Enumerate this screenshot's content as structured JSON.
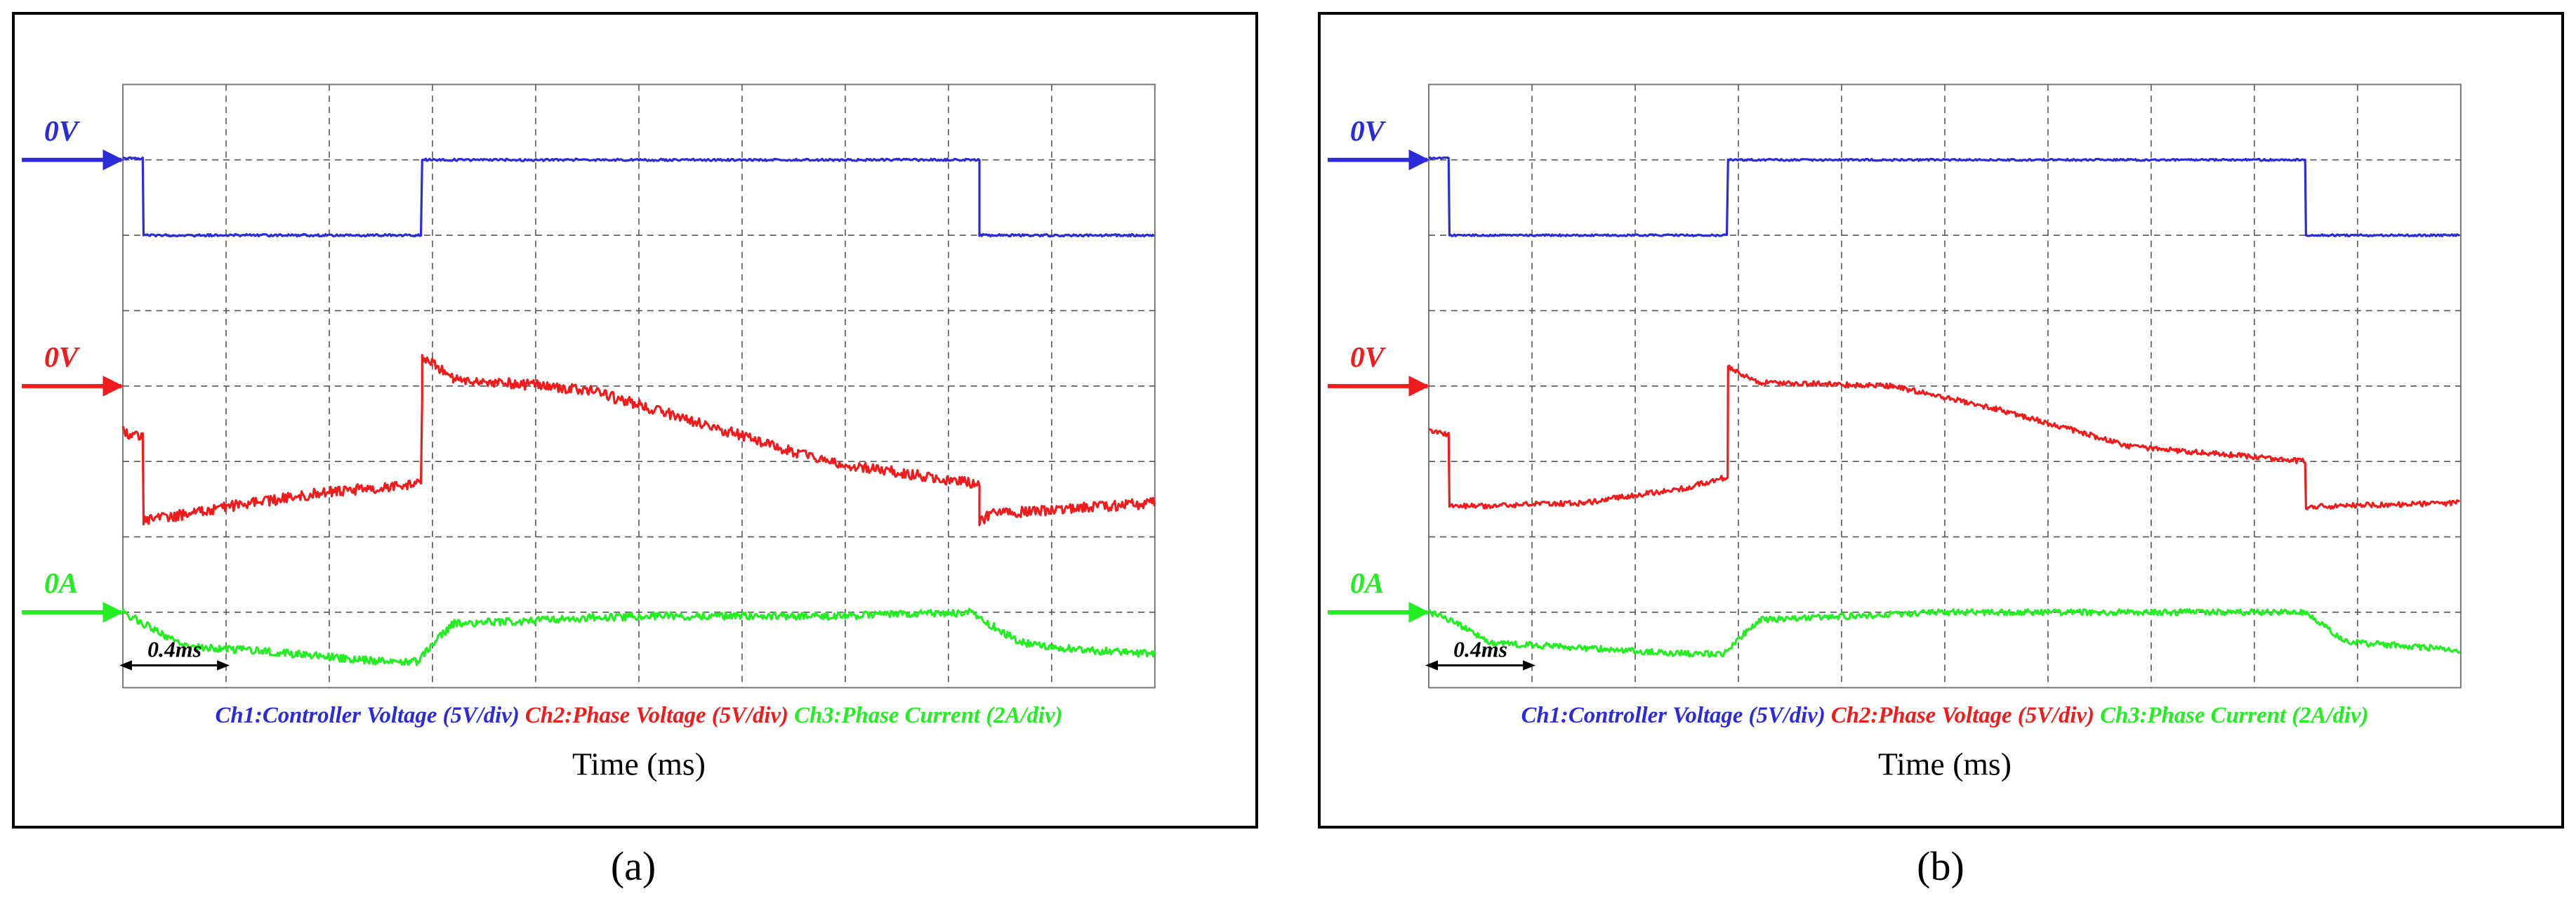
{
  "colors": {
    "ch1": "#2b2bd9",
    "ch2": "#ee1c1c",
    "ch3": "#22ee22",
    "grid": "#555555"
  },
  "chart_data": [
    {
      "type": "line",
      "panel": "(a)",
      "xlabel": "Time (ms)",
      "scale_label": "0.4ms",
      "x_unit_per_div": 0.4,
      "divisions": {
        "x": 10,
        "y": 8
      },
      "grid": true,
      "legend": [
        {
          "text": "Ch1:Controller Voltage (5V/div)",
          "color": "#2b2bd9"
        },
        {
          "text": "Ch2:Phase Voltage (5V/div)",
          "color": "#ee1c1c"
        },
        {
          "text": "Ch3:Phase Current (2A/div)",
          "color": "#22ee22"
        }
      ],
      "series": [
        {
          "name": "Ch1:Controller Voltage (5V/div)",
          "color": "#2b2bd9",
          "marker": "0V",
          "ref_div": 1.0,
          "noise": 0.015,
          "points": [
            [
              0,
              0.98
            ],
            [
              0.2,
              0.98
            ],
            [
              0.2,
              2.0
            ],
            [
              2.9,
              2.0
            ],
            [
              2.9,
              1.0
            ],
            [
              8.3,
              1.0
            ],
            [
              8.3,
              2.0
            ],
            [
              10,
              2.0
            ]
          ]
        },
        {
          "name": "Ch2:Phase Voltage (5V/div)",
          "color": "#ee1c1c",
          "marker": "0V",
          "ref_div": 4.0,
          "noise": 0.07,
          "points": [
            [
              0,
              4.6
            ],
            [
              0.2,
              4.7
            ],
            [
              0.2,
              5.8
            ],
            [
              1,
              5.6
            ],
            [
              2,
              5.4
            ],
            [
              2.9,
              5.3
            ],
            [
              2.9,
              4.15
            ],
            [
              2.9,
              3.6
            ],
            [
              3.2,
              3.9
            ],
            [
              4.5,
              4.05
            ],
            [
              5.5,
              4.45
            ],
            [
              6.8,
              5.0
            ],
            [
              8.3,
              5.3
            ],
            [
              8.3,
              5.8
            ],
            [
              8.4,
              5.7
            ],
            [
              10,
              5.55
            ]
          ]
        },
        {
          "name": "Ch3:Phase Current (2A/div)",
          "color": "#22ee22",
          "marker": "0A",
          "ref_div": 7.0,
          "noise": 0.05,
          "points": [
            [
              0,
              7.0
            ],
            [
              0.2,
              7.15
            ],
            [
              0.6,
              7.45
            ],
            [
              1.2,
              7.5
            ],
            [
              2.5,
              7.65
            ],
            [
              2.85,
              7.65
            ],
            [
              3.2,
              7.15
            ],
            [
              5,
              7.05
            ],
            [
              7,
              7.05
            ],
            [
              8.2,
              7.0
            ],
            [
              8.7,
              7.4
            ],
            [
              9.3,
              7.5
            ],
            [
              10,
              7.55
            ]
          ]
        }
      ]
    },
    {
      "type": "line",
      "panel": "(b)",
      "xlabel": "Time (ms)",
      "scale_label": "0.4ms",
      "x_unit_per_div": 0.4,
      "divisions": {
        "x": 10,
        "y": 8
      },
      "grid": true,
      "legend": [
        {
          "text": "Ch1:Controller Voltage (5V/div)",
          "color": "#2b2bd9"
        },
        {
          "text": "Ch2:Phase Voltage (5V/div)",
          "color": "#ee1c1c"
        },
        {
          "text": "Ch3:Phase Current (2A/div)",
          "color": "#22ee22"
        }
      ],
      "series": [
        {
          "name": "Ch1:Controller Voltage (5V/div)",
          "color": "#2b2bd9",
          "marker": "0V",
          "ref_div": 1.0,
          "noise": 0.012,
          "points": [
            [
              0,
              0.98
            ],
            [
              0.2,
              0.98
            ],
            [
              0.2,
              2.0
            ],
            [
              2.9,
              2.0
            ],
            [
              2.9,
              1.0
            ],
            [
              8.5,
              1.0
            ],
            [
              8.5,
              2.0
            ],
            [
              10,
              2.0
            ]
          ]
        },
        {
          "name": "Ch2:Phase Voltage (5V/div)",
          "color": "#ee1c1c",
          "marker": "0V",
          "ref_div": 4.0,
          "noise": 0.035,
          "points": [
            [
              0,
              4.6
            ],
            [
              0.2,
              4.65
            ],
            [
              0.2,
              5.6
            ],
            [
              1.5,
              5.55
            ],
            [
              2.5,
              5.35
            ],
            [
              2.9,
              5.2
            ],
            [
              2.9,
              3.75
            ],
            [
              3.2,
              3.95
            ],
            [
              4.5,
              4.0
            ],
            [
              5.5,
              4.3
            ],
            [
              6.8,
              4.8
            ],
            [
              8.5,
              5.0
            ],
            [
              8.5,
              5.6
            ],
            [
              10,
              5.55
            ]
          ]
        },
        {
          "name": "Ch3:Phase Current (2A/div)",
          "color": "#22ee22",
          "marker": "0A",
          "ref_div": 7.0,
          "noise": 0.04,
          "points": [
            [
              0,
              7.0
            ],
            [
              0.2,
              7.1
            ],
            [
              0.6,
              7.4
            ],
            [
              1.2,
              7.45
            ],
            [
              2.5,
              7.55
            ],
            [
              2.85,
              7.55
            ],
            [
              3.2,
              7.1
            ],
            [
              5,
              7.0
            ],
            [
              7,
              7.0
            ],
            [
              8.5,
              7.0
            ],
            [
              8.9,
              7.4
            ],
            [
              9.5,
              7.45
            ],
            [
              10,
              7.5
            ]
          ]
        }
      ]
    }
  ],
  "captions": {
    "a": "(a)",
    "b": "(b)"
  }
}
